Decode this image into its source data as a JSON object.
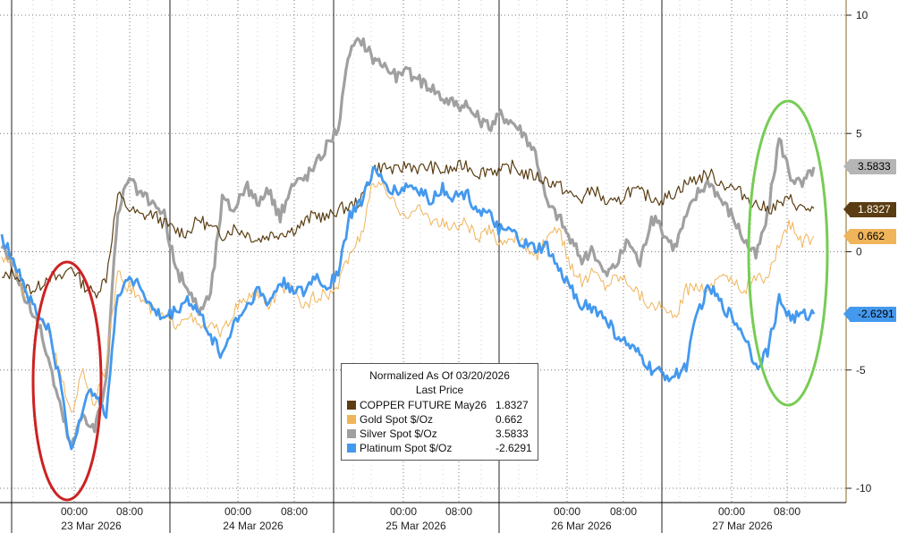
{
  "chart_data": {
    "type": "line",
    "title": "Normalized As Of 03/20/2026",
    "subtitle": "Last Price",
    "ylim": [
      -10,
      10
    ],
    "yticks": [
      "10",
      "5",
      "0",
      "-5",
      "-10"
    ],
    "xtick_times": [
      "00:00",
      "08:00",
      "00:00",
      "08:00",
      "00:00",
      "08:00",
      "00:00",
      "08:00",
      "00:00",
      "08:00"
    ],
    "xtick_dates": [
      "23 Mar 2026",
      "24 Mar 2026",
      "25 Mar 2026",
      "26 Mar 2026",
      "27 Mar 2026"
    ],
    "grid": "dotted",
    "legend_position": "bottom-center",
    "series": [
      {
        "name": "COPPER FUTURE May26",
        "last": "1.8327",
        "color": "#5a3d12",
        "values": [
          -1.2,
          -0.8,
          -1.5,
          -1.6,
          -1.0,
          -1.2,
          -0.6,
          -1.4,
          -1.8,
          -1.1,
          2.4,
          1.8,
          1.5,
          1.6,
          1.2,
          0.9,
          0.8,
          1.4,
          1.0,
          0.7,
          1.0,
          0.8,
          0.5,
          0.7,
          0.8,
          0.9,
          1.2,
          1.6,
          1.4,
          1.8,
          1.9,
          2.2,
          3.5,
          3.6,
          3.4,
          3.7,
          3.5,
          3.6,
          3.4,
          3.5,
          3.7,
          3.3,
          3.5,
          3.4,
          3.6,
          3.3,
          3.2,
          3.0,
          2.8,
          2.4,
          2.2,
          2.7,
          2.1,
          2.0,
          2.6,
          2.5,
          2.3,
          2.2,
          2.5,
          2.9,
          3.1,
          3.3,
          2.9,
          2.7,
          2.4,
          2.0,
          1.8,
          2.0,
          2.2,
          1.8,
          1.83
        ]
      },
      {
        "name": "Gold Spot $/Oz",
        "last": "0.662",
        "color": "#f0b45a",
        "values": [
          -0.2,
          -0.5,
          -1.8,
          -2.6,
          -3.2,
          -5.2,
          -6.8,
          -5.0,
          -6.5,
          -4.8,
          -1.0,
          -1.5,
          -2.0,
          -2.5,
          -2.8,
          -3.0,
          -2.6,
          -3.2,
          -3.1,
          -3.5,
          -2.5,
          -2.0,
          -1.8,
          -2.3,
          -1.5,
          -1.6,
          -2.3,
          -1.9,
          -1.8,
          -1.5,
          0.0,
          0.6,
          3.0,
          2.6,
          1.9,
          1.6,
          1.8,
          1.4,
          1.2,
          1.0,
          1.3,
          0.5,
          0.9,
          0.4,
          0.7,
          0.3,
          -0.2,
          0.5,
          0.9,
          -0.5,
          -1.3,
          -0.8,
          -1.4,
          -1.0,
          -1.2,
          -1.8,
          -2.3,
          -2.4,
          -2.9,
          -1.6,
          -1.4,
          -1.6,
          -0.8,
          -1.3,
          -1.6,
          -1.0,
          -1.3,
          0.4,
          1.2,
          0.4,
          0.66
        ]
      },
      {
        "name": "Silver Spot $/Oz",
        "last": "3.5833",
        "color": "#a0a0a0",
        "values": [
          0.3,
          -0.5,
          -2.0,
          -2.8,
          -4.5,
          -6.5,
          -8.3,
          -6.8,
          -7.5,
          -5.5,
          1.8,
          3.0,
          2.4,
          2.0,
          1.5,
          -0.8,
          -1.5,
          -2.5,
          -1.8,
          2.2,
          1.8,
          2.8,
          2.1,
          2.5,
          1.5,
          2.8,
          3.1,
          3.6,
          4.5,
          5.3,
          8.5,
          9.0,
          8.2,
          7.9,
          7.4,
          7.6,
          7.2,
          7.0,
          6.5,
          6.3,
          6.1,
          5.7,
          5.2,
          5.8,
          5.5,
          5.0,
          4.2,
          2.0,
          1.5,
          0.5,
          -0.3,
          0.0,
          -1.0,
          -0.5,
          0.5,
          -0.5,
          1.5,
          0.8,
          0.2,
          1.5,
          2.5,
          3.0,
          2.2,
          1.5,
          0.5,
          -0.2,
          1.5,
          4.8,
          3.2,
          2.8,
          3.58
        ]
      },
      {
        "name": "Platinum Spot $/Oz",
        "last": "-2.6291",
        "color": "#4499ee",
        "values": [
          0.5,
          -0.2,
          -1.5,
          -2.6,
          -3.2,
          -5.5,
          -8.5,
          -6.5,
          -5.8,
          -6.8,
          -1.8,
          -1.0,
          -1.5,
          -2.5,
          -2.8,
          -2.5,
          -2.0,
          -2.6,
          -3.5,
          -4.4,
          -3.0,
          -2.4,
          -1.6,
          -2.2,
          -1.3,
          -1.5,
          -1.8,
          -1.0,
          -1.5,
          -0.8,
          1.5,
          2.2,
          3.4,
          2.9,
          2.5,
          2.8,
          2.6,
          2.2,
          2.7,
          2.3,
          2.5,
          1.8,
          1.5,
          0.9,
          0.8,
          0.3,
          0.1,
          0.2,
          -0.8,
          -1.5,
          -2.2,
          -2.4,
          -2.8,
          -3.5,
          -4.0,
          -4.4,
          -5.0,
          -5.2,
          -5.3,
          -4.8,
          -2.5,
          -1.5,
          -2.2,
          -2.8,
          -3.5,
          -4.8,
          -4.2,
          -2.0,
          -2.8,
          -2.7,
          -2.63
        ]
      }
    ]
  },
  "tags": [
    {
      "label": "3.5833",
      "color": "#b5b5b5",
      "text_color": "#000000"
    },
    {
      "label": "1.8327",
      "color": "#5a3d12",
      "text_color": "#ffffff"
    },
    {
      "label": "0.662",
      "color": "#f0b45a",
      "text_color": "#000000"
    },
    {
      "label": "-2.6291",
      "color": "#4499ee",
      "text_color": "#000000"
    }
  ],
  "annotations": {
    "red_ellipse_color": "#cc2222",
    "green_ellipse_color": "#77cc55"
  }
}
